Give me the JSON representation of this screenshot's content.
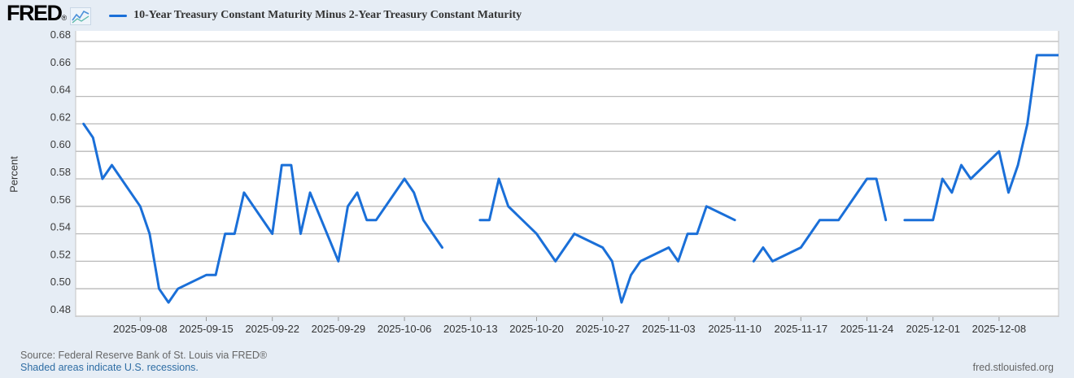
{
  "header": {
    "logo_text": "FRED",
    "logo_reg_mark": "®"
  },
  "footer": {
    "source": "Source: Federal Reserve Bank of St. Louis via FRED®",
    "note": "Shaded areas indicate U.S. recessions.",
    "site": "fred.stlouisfed.org"
  },
  "colors": {
    "background": "#e6edf5",
    "plot_background": "#ffffff",
    "line": "#1a6fd8",
    "grid": "#b9b9b9",
    "axis_edge": "#c4c4c4",
    "tick_text": "#3c3c3c",
    "link": "#2e6da4",
    "muted_text": "#666666"
  },
  "chart_data": {
    "type": "line",
    "title": "10-Year Treasury Constant Maturity Minus 2-Year Treasury Constant Maturity",
    "ylabel": "Percent",
    "xlabel": "",
    "ylim": [
      0.48,
      0.68
    ],
    "y_tick_step": 0.02,
    "y_tick_labels": [
      "0.48",
      "0.50",
      "0.52",
      "0.54",
      "0.56",
      "0.58",
      "0.60",
      "0.62",
      "0.64",
      "0.66",
      "0.68"
    ],
    "x_domain": [
      "2025-09-01",
      "2025-12-14"
    ],
    "x_tick_labels": [
      "2025-09-08",
      "2025-09-15",
      "2025-09-22",
      "2025-09-29",
      "2025-10-06",
      "2025-10-13",
      "2025-10-20",
      "2025-10-27",
      "2025-11-03",
      "2025-11-10",
      "2025-11-17",
      "2025-11-24",
      "2025-12-01",
      "2025-12-08"
    ],
    "grid": true,
    "legend_position": "top",
    "gaps_note_dates": [
      "2025-10-13",
      "2025-11-11",
      "2025-11-27"
    ],
    "series": [
      {
        "name": "10-Year Treasury Constant Maturity Minus 2-Year Treasury Constant Maturity",
        "units": "Percent",
        "points": [
          [
            "2025-09-02",
            0.62
          ],
          [
            "2025-09-03",
            0.61
          ],
          [
            "2025-09-04",
            0.58
          ],
          [
            "2025-09-05",
            0.59
          ],
          [
            "2025-09-08",
            0.56
          ],
          [
            "2025-09-09",
            0.54
          ],
          [
            "2025-09-10",
            0.5
          ],
          [
            "2025-09-11",
            0.49
          ],
          [
            "2025-09-12",
            0.5
          ],
          [
            "2025-09-15",
            0.51
          ],
          [
            "2025-09-16",
            0.51
          ],
          [
            "2025-09-17",
            0.54
          ],
          [
            "2025-09-18",
            0.54
          ],
          [
            "2025-09-19",
            0.57
          ],
          [
            "2025-09-22",
            0.54
          ],
          [
            "2025-09-23",
            0.59
          ],
          [
            "2025-09-24",
            0.59
          ],
          [
            "2025-09-25",
            0.54
          ],
          [
            "2025-09-26",
            0.57
          ],
          [
            "2025-09-29",
            0.52
          ],
          [
            "2025-09-30",
            0.56
          ],
          [
            "2025-10-01",
            0.57
          ],
          [
            "2025-10-02",
            0.55
          ],
          [
            "2025-10-03",
            0.55
          ],
          [
            "2025-10-06",
            0.58
          ],
          [
            "2025-10-07",
            0.57
          ],
          [
            "2025-10-08",
            0.55
          ],
          [
            "2025-10-09",
            0.54
          ],
          [
            "2025-10-10",
            0.53
          ],
          [
            "2025-10-13",
            null
          ],
          [
            "2025-10-14",
            0.55
          ],
          [
            "2025-10-15",
            0.55
          ],
          [
            "2025-10-16",
            0.58
          ],
          [
            "2025-10-17",
            0.56
          ],
          [
            "2025-10-20",
            0.54
          ],
          [
            "2025-10-21",
            0.53
          ],
          [
            "2025-10-22",
            0.52
          ],
          [
            "2025-10-23",
            0.53
          ],
          [
            "2025-10-24",
            0.54
          ],
          [
            "2025-10-27",
            0.53
          ],
          [
            "2025-10-28",
            0.52
          ],
          [
            "2025-10-29",
            0.49
          ],
          [
            "2025-10-30",
            0.51
          ],
          [
            "2025-10-31",
            0.52
          ],
          [
            "2025-11-03",
            0.53
          ],
          [
            "2025-11-04",
            0.52
          ],
          [
            "2025-11-05",
            0.54
          ],
          [
            "2025-11-06",
            0.54
          ],
          [
            "2025-11-07",
            0.56
          ],
          [
            "2025-11-10",
            0.55
          ],
          [
            "2025-11-11",
            null
          ],
          [
            "2025-11-12",
            0.52
          ],
          [
            "2025-11-13",
            0.53
          ],
          [
            "2025-11-14",
            0.52
          ],
          [
            "2025-11-17",
            0.53
          ],
          [
            "2025-11-18",
            0.54
          ],
          [
            "2025-11-19",
            0.55
          ],
          [
            "2025-11-20",
            0.55
          ],
          [
            "2025-11-21",
            0.55
          ],
          [
            "2025-11-24",
            0.58
          ],
          [
            "2025-11-25",
            0.58
          ],
          [
            "2025-11-26",
            0.55
          ],
          [
            "2025-11-27",
            null
          ],
          [
            "2025-11-28",
            0.55
          ],
          [
            "2025-12-01",
            0.55
          ],
          [
            "2025-12-02",
            0.58
          ],
          [
            "2025-12-03",
            0.57
          ],
          [
            "2025-12-04",
            0.59
          ],
          [
            "2025-12-05",
            0.58
          ],
          [
            "2025-12-08",
            0.6
          ],
          [
            "2025-12-09",
            0.57
          ],
          [
            "2025-12-10",
            0.59
          ],
          [
            "2025-12-11",
            0.62
          ],
          [
            "2025-12-12",
            0.67
          ],
          [
            "2025-12-15",
            0.67
          ]
        ]
      }
    ]
  }
}
